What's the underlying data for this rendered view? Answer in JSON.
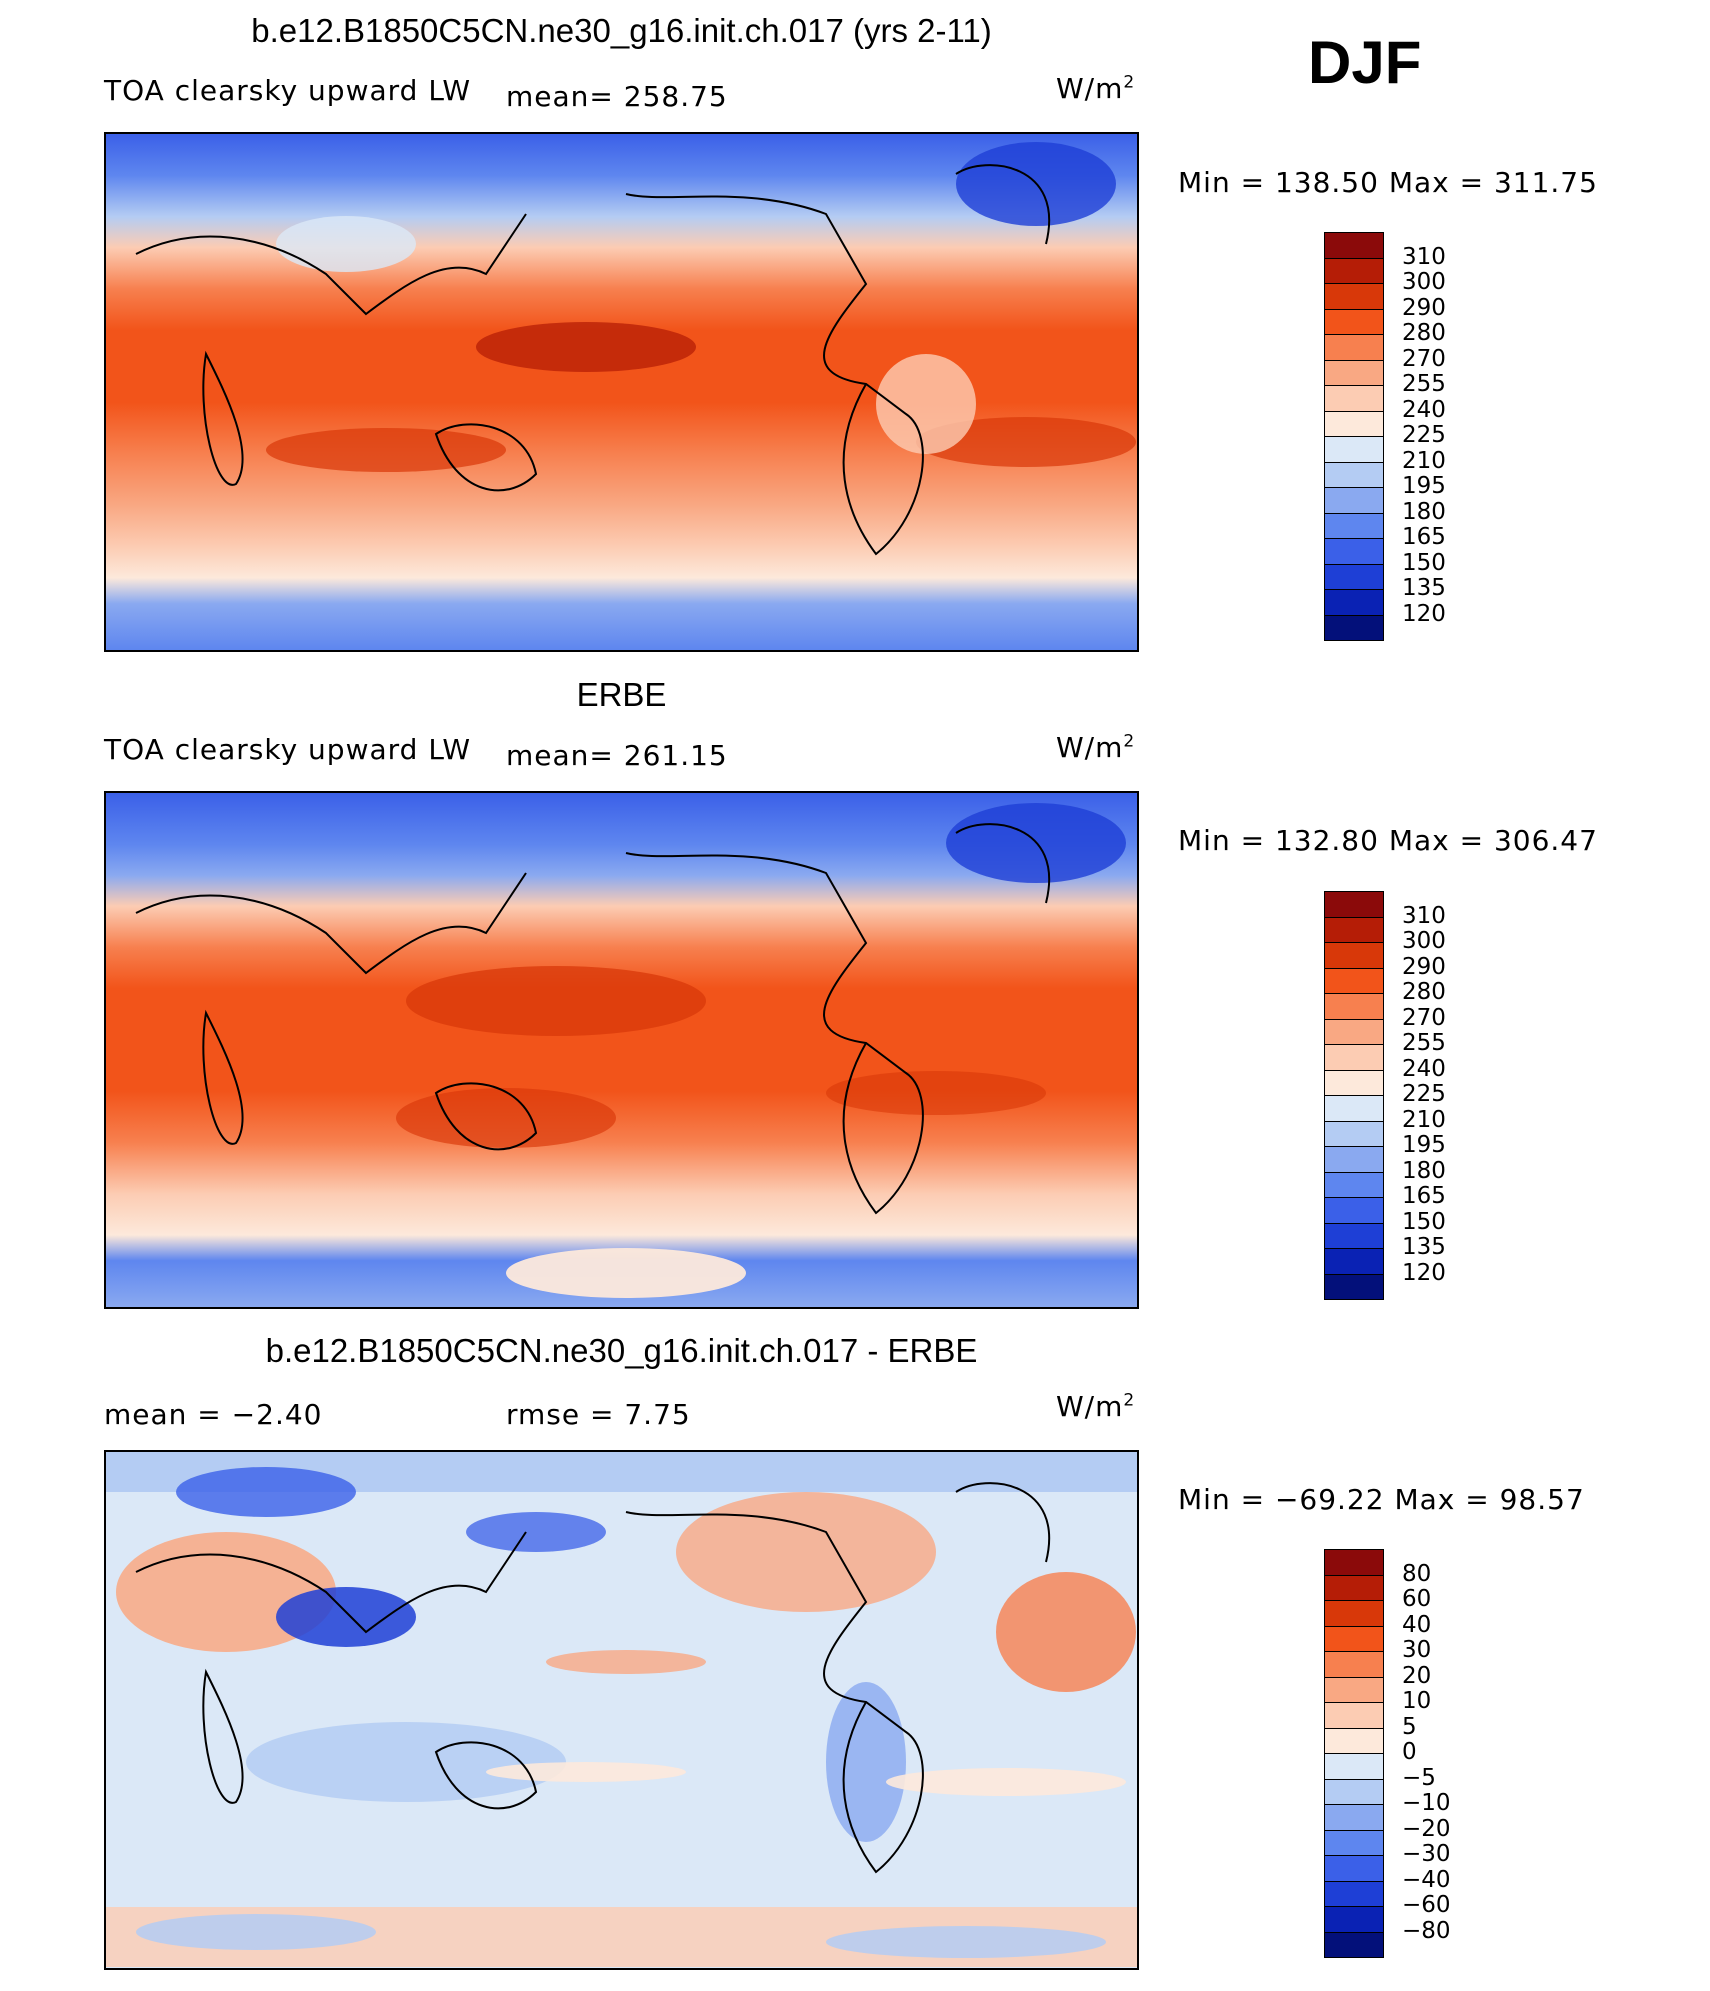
{
  "season": "DJF",
  "units_label": "W/m",
  "units_sup": "2",
  "panels": [
    {
      "title": "b.e12.B1850C5CN.ne30_g16.init.ch.017 (yrs 2-11)",
      "variable": "TOA clearsky upward LW",
      "stat1": "mean= 258.75",
      "stat2": "",
      "minmax": "Min = 138.50 Max = 311.75"
    },
    {
      "title": "ERBE",
      "variable": "TOA clearsky upward LW",
      "stat1": "mean= 261.15",
      "stat2": "",
      "minmax": "Min = 132.80 Max = 306.47"
    },
    {
      "title": "b.e12.B1850C5CN.ne30_g16.init.ch.017 - ERBE",
      "variable": "",
      "stat1": "mean =   −2.40",
      "stat2": "rmse =    7.75",
      "minmax": "Min = −69.22 Max =   98.57"
    }
  ],
  "colorbar_abs": {
    "levels": [
      "310",
      "300",
      "290",
      "280",
      "270",
      "255",
      "240",
      "225",
      "210",
      "195",
      "180",
      "165",
      "150",
      "135",
      "120"
    ],
    "colors": [
      "#8b0a0a",
      "#b51d06",
      "#d83809",
      "#f2541a",
      "#f7804f",
      "#f9a883",
      "#fcccb3",
      "#fde9db",
      "#dbe8f7",
      "#b4ccf3",
      "#8aa9f0",
      "#5e86ef",
      "#3b60e8",
      "#1e3fd6",
      "#0a22b4",
      "#03107a"
    ]
  },
  "colorbar_diff": {
    "levels": [
      "80",
      "60",
      "40",
      "30",
      "20",
      "10",
      "5",
      "0",
      "−5",
      "−10",
      "−20",
      "−30",
      "−40",
      "−60",
      "−80"
    ],
    "colors": [
      "#8b0a0a",
      "#b51d06",
      "#d83809",
      "#f2541a",
      "#f7804f",
      "#f9a883",
      "#fcccb3",
      "#fde9db",
      "#dbe8f7",
      "#b4ccf3",
      "#8aa9f0",
      "#5e86ef",
      "#3b60e8",
      "#1e3fd6",
      "#0a22b4",
      "#03107a"
    ]
  }
}
